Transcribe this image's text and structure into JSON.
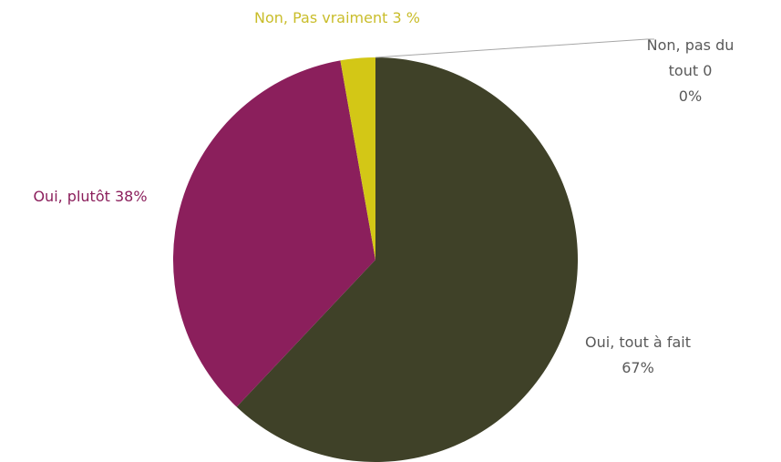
{
  "chart_data": {
    "type": "pie",
    "categories": [
      "Oui, tout à fait",
      "Oui, plutôt",
      "Non, Pas vraiment",
      "Non, pas du tout 0"
    ],
    "values": [
      67,
      38,
      3,
      0
    ],
    "value_labels": [
      "67%",
      "38%",
      "3 %",
      "0%"
    ],
    "colors": [
      "#3f4128",
      "#8b1f5c",
      "#d3c716",
      "#9e9e9e"
    ]
  }
}
